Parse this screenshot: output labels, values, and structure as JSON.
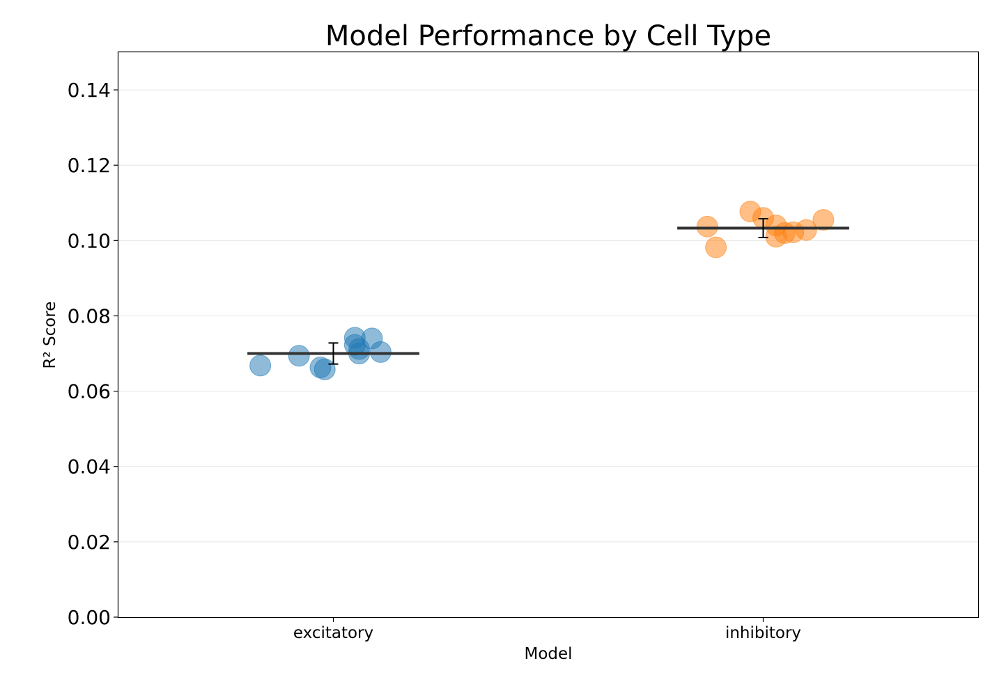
{
  "chart_data": {
    "type": "scatter",
    "title": "Model Performance by Cell Type",
    "xlabel": "Model",
    "ylabel": "R² Score",
    "ylim": [
      0,
      0.15
    ],
    "yticks": [
      0.0,
      0.02,
      0.04,
      0.06,
      0.08,
      0.1,
      0.12,
      0.14
    ],
    "ytick_labels": [
      "0.00",
      "0.02",
      "0.04",
      "0.06",
      "0.08",
      "0.10",
      "0.12",
      "0.14"
    ],
    "grid": "horizontal",
    "categories": [
      "excitatory",
      "inhibitory"
    ],
    "series": [
      {
        "category": "excitatory",
        "color": "#1f77b4",
        "mean": 0.07,
        "error": 0.0028,
        "points": [
          {
            "jitter": -0.17,
            "y": 0.0668
          },
          {
            "jitter": -0.08,
            "y": 0.0694
          },
          {
            "jitter": -0.03,
            "y": 0.0663
          },
          {
            "jitter": -0.02,
            "y": 0.0658
          },
          {
            "jitter": 0.05,
            "y": 0.0742
          },
          {
            "jitter": 0.05,
            "y": 0.0723
          },
          {
            "jitter": 0.06,
            "y": 0.07
          },
          {
            "jitter": 0.09,
            "y": 0.074
          },
          {
            "jitter": 0.11,
            "y": 0.0704
          },
          {
            "jitter": 0.06,
            "y": 0.0712
          }
        ]
      },
      {
        "category": "inhibitory",
        "color": "#ff7f0e",
        "mean": 0.1033,
        "error": 0.0025,
        "points": [
          {
            "jitter": -0.13,
            "y": 0.1037
          },
          {
            "jitter": -0.11,
            "y": 0.0982
          },
          {
            "jitter": -0.03,
            "y": 0.1077
          },
          {
            "jitter": 0.0,
            "y": 0.106
          },
          {
            "jitter": 0.03,
            "y": 0.104
          },
          {
            "jitter": 0.03,
            "y": 0.101
          },
          {
            "jitter": 0.07,
            "y": 0.1022
          },
          {
            "jitter": 0.1,
            "y": 0.1028
          },
          {
            "jitter": 0.14,
            "y": 0.1055
          },
          {
            "jitter": 0.05,
            "y": 0.102
          }
        ]
      }
    ]
  }
}
